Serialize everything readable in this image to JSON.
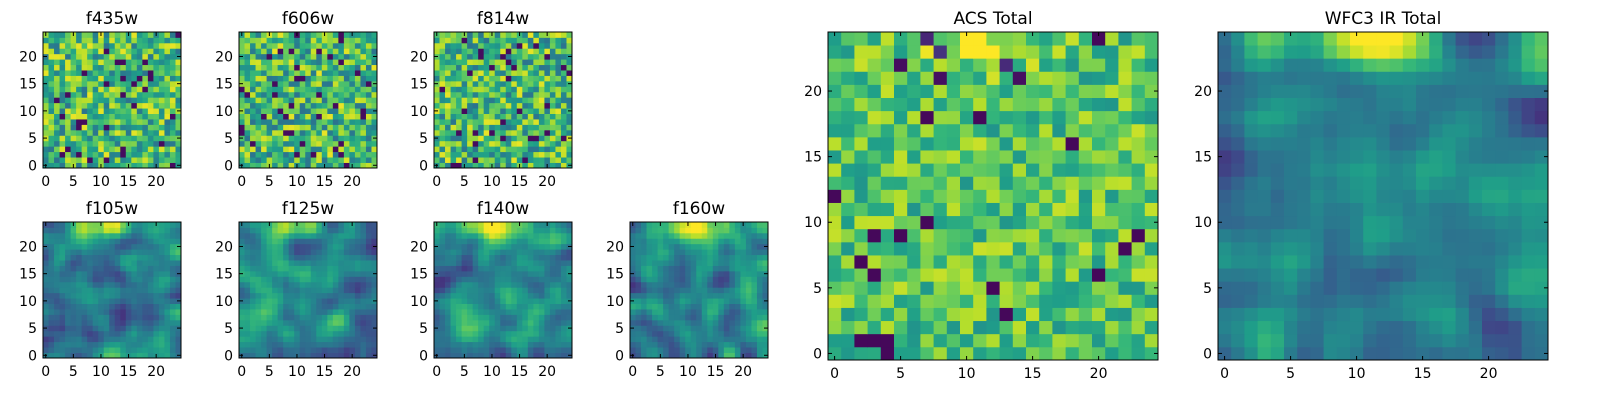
{
  "figure": {
    "colormap": "viridis",
    "colormap_stops": [
      "#440154",
      "#482878",
      "#3e4a89",
      "#31688e",
      "#26828e",
      "#1f9e89",
      "#35b779",
      "#6ece58",
      "#b5de2b",
      "#fde725"
    ]
  },
  "chart_data": [
    {
      "type": "heatmap",
      "id": "f435w",
      "title": "f435w",
      "grid": [
        25,
        25
      ],
      "xlim": [
        0,
        24
      ],
      "ylim": [
        0,
        24
      ],
      "xticks": [
        0,
        5,
        10,
        15,
        20
      ],
      "yticks": [
        0,
        5,
        10,
        15,
        20
      ],
      "xtick_labels": [
        "0",
        "5",
        "10",
        "15",
        "20"
      ],
      "ytick_labels": [
        "0",
        "5",
        "10",
        "15",
        "20"
      ],
      "pattern": "noise",
      "value_range": [
        0,
        1
      ],
      "seed": 11
    },
    {
      "type": "heatmap",
      "id": "f606w",
      "title": "f606w",
      "grid": [
        25,
        25
      ],
      "xlim": [
        0,
        24
      ],
      "ylim": [
        0,
        24
      ],
      "xticks": [
        0,
        5,
        10,
        15,
        20
      ],
      "yticks": [
        0,
        5,
        10,
        15,
        20
      ],
      "xtick_labels": [
        "0",
        "5",
        "10",
        "15",
        "20"
      ],
      "ytick_labels": [
        "0",
        "5",
        "10",
        "15",
        "20"
      ],
      "pattern": "noise",
      "value_range": [
        0,
        1
      ],
      "seed": 23
    },
    {
      "type": "heatmap",
      "id": "f814w",
      "title": "f814w",
      "grid": [
        25,
        25
      ],
      "xlim": [
        0,
        24
      ],
      "ylim": [
        0,
        24
      ],
      "xticks": [
        0,
        5,
        10,
        15,
        20
      ],
      "yticks": [
        0,
        5,
        10,
        15,
        20
      ],
      "xtick_labels": [
        "0",
        "5",
        "10",
        "15",
        "20"
      ],
      "ytick_labels": [
        "0",
        "5",
        "10",
        "15",
        "20"
      ],
      "pattern": "noise",
      "value_range": [
        0,
        1
      ],
      "seed": 37
    },
    {
      "type": "heatmap",
      "id": "f105w",
      "title": "f105w",
      "grid": [
        25,
        25
      ],
      "xlim": [
        0,
        24
      ],
      "ylim": [
        0,
        24
      ],
      "xticks": [
        0,
        5,
        10,
        15,
        20
      ],
      "yticks": [
        0,
        5,
        10,
        15,
        20
      ],
      "xtick_labels": [
        "0",
        "5",
        "10",
        "15",
        "20"
      ],
      "ytick_labels": [
        "0",
        "5",
        "10",
        "15",
        "20"
      ],
      "pattern": "smooth-peak",
      "value_range": [
        0,
        1
      ],
      "seed": 41
    },
    {
      "type": "heatmap",
      "id": "f125w",
      "title": "f125w",
      "grid": [
        25,
        25
      ],
      "xlim": [
        0,
        24
      ],
      "ylim": [
        0,
        24
      ],
      "xticks": [
        0,
        5,
        10,
        15,
        20
      ],
      "yticks": [
        0,
        5,
        10,
        15,
        20
      ],
      "xtick_labels": [
        "0",
        "5",
        "10",
        "15",
        "20"
      ],
      "ytick_labels": [
        "0",
        "5",
        "10",
        "15",
        "20"
      ],
      "pattern": "smooth-peak",
      "value_range": [
        0,
        1
      ],
      "seed": 53
    },
    {
      "type": "heatmap",
      "id": "f140w",
      "title": "f140w",
      "grid": [
        25,
        25
      ],
      "xlim": [
        0,
        24
      ],
      "ylim": [
        0,
        24
      ],
      "xticks": [
        0,
        5,
        10,
        15,
        20
      ],
      "yticks": [
        0,
        5,
        10,
        15,
        20
      ],
      "xtick_labels": [
        "0",
        "5",
        "10",
        "15",
        "20"
      ],
      "ytick_labels": [
        "0",
        "5",
        "10",
        "15",
        "20"
      ],
      "pattern": "smooth-peak",
      "value_range": [
        0,
        1
      ],
      "seed": 67
    },
    {
      "type": "heatmap",
      "id": "f160w",
      "title": "f160w",
      "grid": [
        25,
        25
      ],
      "xlim": [
        0,
        24
      ],
      "ylim": [
        0,
        24
      ],
      "xticks": [
        0,
        5,
        10,
        15,
        20
      ],
      "yticks": [
        0,
        5,
        10,
        15,
        20
      ],
      "xtick_labels": [
        "0",
        "5",
        "10",
        "15",
        "20"
      ],
      "ytick_labels": [
        "0",
        "5",
        "10",
        "15",
        "20"
      ],
      "pattern": "smooth-peak",
      "value_range": [
        0,
        1
      ],
      "seed": 79
    },
    {
      "type": "heatmap",
      "id": "acs-total",
      "title": "ACS Total",
      "grid": [
        25,
        25
      ],
      "xlim": [
        0,
        24
      ],
      "ylim": [
        0,
        24
      ],
      "xticks": [
        0,
        5,
        10,
        15,
        20
      ],
      "yticks": [
        0,
        5,
        10,
        15,
        20
      ],
      "xtick_labels": [
        "0",
        "5",
        "10",
        "15",
        "20"
      ],
      "ytick_labels": [
        "0",
        "5",
        "10",
        "15",
        "20"
      ],
      "pattern": "noise-bright",
      "value_range": [
        0,
        1
      ],
      "seed": 97
    },
    {
      "type": "heatmap",
      "id": "wfc3-total",
      "title": "WFC3 IR Total",
      "grid": [
        25,
        25
      ],
      "xlim": [
        0,
        24
      ],
      "ylim": [
        0,
        24
      ],
      "xticks": [
        0,
        5,
        10,
        15,
        20
      ],
      "yticks": [
        0,
        5,
        10,
        15,
        20
      ],
      "xtick_labels": [
        "0",
        "5",
        "10",
        "15",
        "20"
      ],
      "ytick_labels": [
        "0",
        "5",
        "10",
        "15",
        "20"
      ],
      "pattern": "smooth-peak",
      "value_range": [
        0,
        1
      ],
      "seed": 113
    }
  ]
}
